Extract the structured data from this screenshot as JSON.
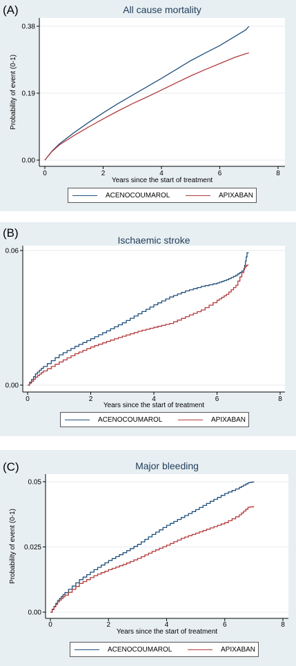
{
  "colors": {
    "acenocoumarol": "#1f4e79",
    "apixaban": "#b2383a"
  },
  "chart_data": [
    {
      "type": "line",
      "panel_label": "(A)",
      "title": "All cause mortality",
      "xlabel": "Years since the start of treatment",
      "ylabel": "Probability of event (0-1)",
      "xlim": [
        0,
        8
      ],
      "ylim": [
        0,
        0.38
      ],
      "xticks": [
        0,
        2,
        4,
        6,
        8
      ],
      "yticks": [
        0,
        0.19,
        0.38
      ],
      "ytick_labels": [
        "0.00",
        "0.19",
        "0.38"
      ],
      "grid": true,
      "legend_position": "bottom",
      "x": [
        0,
        0.25,
        0.5,
        1,
        1.5,
        2,
        2.5,
        3,
        3.5,
        4,
        4.5,
        5,
        5.5,
        6,
        6.5,
        6.9,
        7.0
      ],
      "series": [
        {
          "name": "ACENOCOUMAROL",
          "color": "#1f4e79",
          "step": false,
          "values": [
            0,
            0.026,
            0.046,
            0.078,
            0.107,
            0.134,
            0.16,
            0.184,
            0.208,
            0.232,
            0.257,
            0.282,
            0.304,
            0.325,
            0.35,
            0.37,
            0.38
          ]
        },
        {
          "name": "APIXABAN",
          "color": "#b2383a",
          "step": false,
          "values": [
            0,
            0.025,
            0.043,
            0.07,
            0.094,
            0.117,
            0.139,
            0.16,
            0.179,
            0.199,
            0.219,
            0.239,
            0.257,
            0.274,
            0.291,
            0.302,
            0.304
          ]
        }
      ]
    },
    {
      "type": "line",
      "panel_label": "(B)",
      "title": "Ischaemic stroke",
      "xlabel": "Years since the start of treatment",
      "ylabel": "",
      "xlim": [
        0,
        8
      ],
      "ylim": [
        0,
        0.06
      ],
      "xticks": [
        0,
        2,
        4,
        6,
        8
      ],
      "yticks": [
        0,
        0.06
      ],
      "ytick_labels": [
        "0.00",
        "0.06"
      ],
      "grid": true,
      "legend_position": "bottom",
      "x": [
        0,
        0.25,
        0.5,
        1,
        1.5,
        2,
        2.5,
        3,
        3.5,
        4,
        4.5,
        5,
        5.5,
        6,
        6.3,
        6.6,
        6.85,
        6.95,
        7.0
      ],
      "series": [
        {
          "name": "ACENOCOUMAROL",
          "color": "#1f4e79",
          "step": true,
          "values": [
            0,
            0.005,
            0.0083,
            0.0135,
            0.0173,
            0.0207,
            0.0242,
            0.0278,
            0.0318,
            0.0358,
            0.0393,
            0.042,
            0.044,
            0.0455,
            0.047,
            0.049,
            0.0515,
            0.059,
            0.059
          ]
        },
        {
          "name": "APIXABAN",
          "color": "#b2383a",
          "step": true,
          "values": [
            0,
            0.0035,
            0.0063,
            0.0103,
            0.014,
            0.017,
            0.0195,
            0.0218,
            0.024,
            0.0258,
            0.0275,
            0.0305,
            0.0335,
            0.0378,
            0.0405,
            0.0445,
            0.052,
            0.0535,
            0.0535
          ]
        }
      ]
    },
    {
      "type": "line",
      "panel_label": "(C)",
      "title": "Major bleeding",
      "xlabel": "Years since the start of treatment",
      "ylabel": "Probability of event (0-1)",
      "xlim": [
        0,
        8
      ],
      "ylim": [
        0,
        0.05
      ],
      "xticks": [
        0,
        2,
        4,
        6,
        8
      ],
      "yticks": [
        0,
        0.025,
        0.05
      ],
      "ytick_labels": [
        "0.00",
        "0.025",
        "0.05"
      ],
      "grid": true,
      "legend_position": "bottom",
      "x": [
        0,
        0.25,
        0.5,
        1,
        1.5,
        2,
        2.5,
        3,
        3.5,
        4,
        4.5,
        5,
        5.5,
        6,
        6.5,
        6.8,
        7.0
      ],
      "series": [
        {
          "name": "ACENOCOUMAROL",
          "color": "#1f4e79",
          "step": true,
          "values": [
            0,
            0.0045,
            0.0075,
            0.0125,
            0.0163,
            0.0198,
            0.0228,
            0.026,
            0.0298,
            0.0333,
            0.0363,
            0.0393,
            0.0425,
            0.0455,
            0.0478,
            0.0496,
            0.05
          ]
        },
        {
          "name": "APIXABAN",
          "color": "#b2383a",
          "step": true,
          "values": [
            0,
            0.004,
            0.0065,
            0.011,
            0.014,
            0.0163,
            0.0183,
            0.0206,
            0.0233,
            0.0257,
            0.0283,
            0.0303,
            0.0323,
            0.0343,
            0.0373,
            0.0402,
            0.0405
          ]
        }
      ]
    }
  ]
}
